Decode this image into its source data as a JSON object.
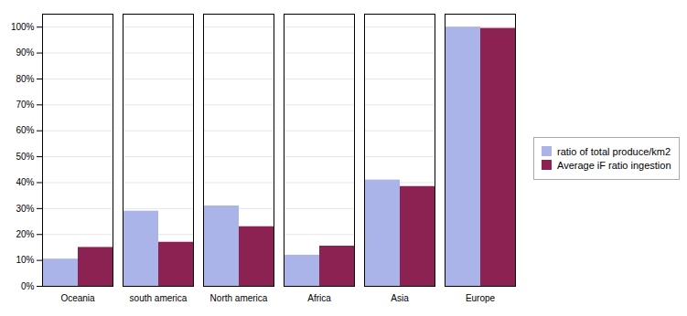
{
  "chart_data": {
    "type": "bar",
    "categories": [
      "Oceania",
      "south america",
      "North america",
      "Africa",
      "Asia",
      "Europe"
    ],
    "series": [
      {
        "name": "ratio of total produce/km2",
        "color": "#aab4e8",
        "values": [
          0.105,
          0.29,
          0.31,
          0.12,
          0.41,
          1.0
        ]
      },
      {
        "name": "Average iF ratio ingestion",
        "color": "#8b2252",
        "values": [
          0.15,
          0.17,
          0.23,
          0.155,
          0.385,
          0.995
        ]
      }
    ],
    "ylim": [
      0,
      1.05
    ],
    "yticks": [
      {
        "value": 0.0,
        "label": "0%"
      },
      {
        "value": 0.1,
        "label": "10%"
      },
      {
        "value": 0.2,
        "label": "20%"
      },
      {
        "value": 0.3,
        "label": "30%"
      },
      {
        "value": 0.4,
        "label": "40%"
      },
      {
        "value": 0.5,
        "label": "50%"
      },
      {
        "value": 0.6,
        "label": "60%"
      },
      {
        "value": 0.7,
        "label": "70%"
      },
      {
        "value": 0.8,
        "label": "80%"
      },
      {
        "value": 0.9,
        "label": "90%"
      },
      {
        "value": 1.0,
        "label": "100%"
      }
    ],
    "grid": true,
    "legend": "right"
  }
}
